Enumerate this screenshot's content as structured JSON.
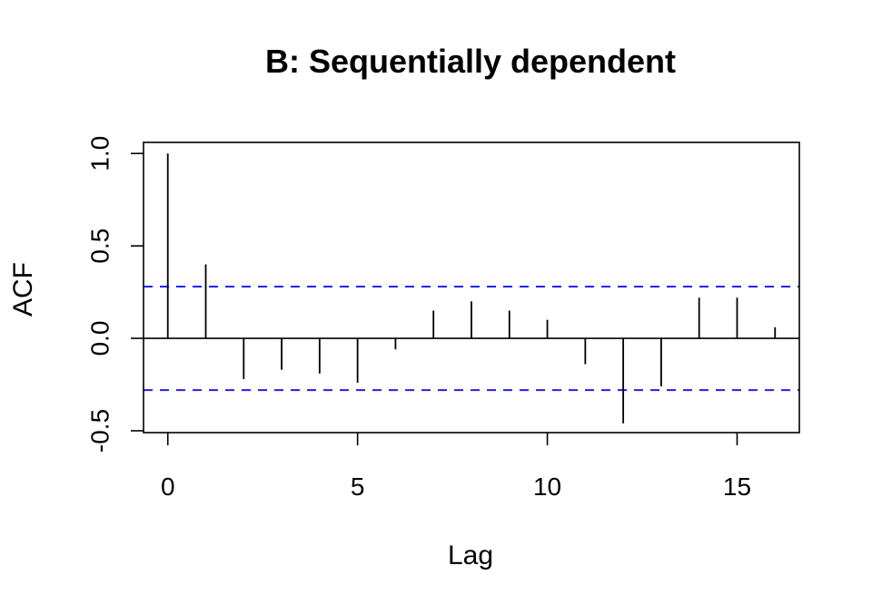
{
  "chart_data": {
    "type": "bar",
    "title": "B: Sequentially dependent",
    "xlabel": "Lag",
    "ylabel": "ACF",
    "xlim": [
      -0.64,
      16.64
    ],
    "ylim": [
      -0.51,
      1.06
    ],
    "x_ticks": [
      0,
      5,
      10,
      15
    ],
    "x_tick_labels": [
      "0",
      "5",
      "10",
      "15"
    ],
    "y_ticks": [
      -0.5,
      0.0,
      0.5,
      1.0
    ],
    "y_tick_labels": [
      "-0.5",
      "0.0",
      "0.5",
      "1.0"
    ],
    "lags": [
      0,
      1,
      2,
      3,
      4,
      5,
      6,
      7,
      8,
      9,
      10,
      11,
      12,
      13,
      14,
      15,
      16
    ],
    "values": [
      1.0,
      0.4,
      -0.22,
      -0.17,
      -0.19,
      -0.24,
      -0.06,
      0.15,
      0.2,
      0.15,
      0.1,
      -0.14,
      -0.46,
      -0.26,
      0.22,
      0.22,
      0.06
    ],
    "confidence_bound": 0.28,
    "zero_line": true,
    "grid": false,
    "colors": {
      "bars": "#000000",
      "confidence_lines": "#1f1fff",
      "axis": "#000000"
    }
  }
}
